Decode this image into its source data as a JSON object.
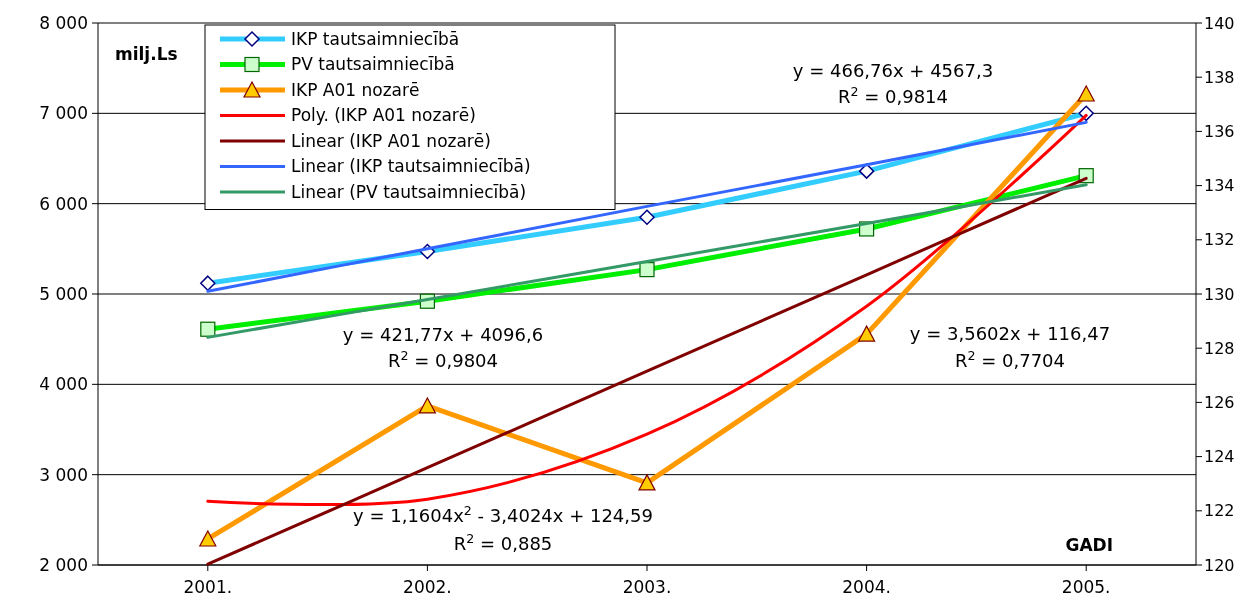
{
  "chart_data": {
    "type": "line",
    "xlabel": "GADI",
    "ylabel": "milj.Ls",
    "categories": [
      "2001.",
      "2002.",
      "2003.",
      "2004.",
      "2005."
    ],
    "ylim": [
      2000,
      8000
    ],
    "yticks": [
      {
        "value": 2000,
        "label": "2 000"
      },
      {
        "value": 3000,
        "label": "3 000"
      },
      {
        "value": 4000,
        "label": "4 000"
      },
      {
        "value": 5000,
        "label": "5 000"
      },
      {
        "value": 6000,
        "label": "6 000"
      },
      {
        "value": 7000,
        "label": "7 000"
      },
      {
        "value": 8000,
        "label": "8 000"
      }
    ],
    "y2lim": [
      120,
      140
    ],
    "y2ticks": [
      120,
      122,
      124,
      126,
      128,
      130,
      132,
      134,
      136,
      138,
      140
    ],
    "grid": "y",
    "legend": "top left",
    "line_style": "solid",
    "series": [
      {
        "name": "IKP tautsaimniecībā",
        "color": "#33ccff",
        "marker": "diamond",
        "values": [
          5120,
          5470,
          5850,
          6360,
          7000
        ]
      },
      {
        "name": "PV tautsaimniecībā",
        "color": "#00ee00",
        "marker": "square",
        "values": [
          4610,
          4920,
          5270,
          5720,
          6310
        ]
      },
      {
        "name": "IKP A01 nozarē",
        "color": "#ff9900",
        "marker": "triangle",
        "axis": "y2",
        "values": [
          120.96,
          125.87,
          123.03,
          128.52,
          137.38
        ]
      },
      {
        "name": "Poly. (IKP A01 nozarē)",
        "color": "#ff0000",
        "marker": "none",
        "axis": "y2",
        "values": [
          122.35,
          122.43,
          124.83,
          129.55,
          136.59
        ]
      },
      {
        "name": "Linear (IKP A01 nozarē)",
        "color": "#800000",
        "marker": "none",
        "axis": "y2",
        "values": [
          120.03,
          123.59,
          127.15,
          130.71,
          134.27
        ]
      },
      {
        "name": "Linear (IKP tautsaimniecībā)",
        "color": "#3366ff",
        "marker": "none",
        "values": [
          5030,
          5500,
          5970,
          6430,
          6900
        ]
      },
      {
        "name": "Linear (PV tautsaimniecībā)",
        "color": "#339966",
        "marker": "none",
        "values": [
          4520,
          4940,
          5360,
          5780,
          6210
        ]
      }
    ],
    "annotations": [
      "y = 466,76x + 4567,3",
      "R$^{2}$ = 0,9814",
      "y = 421,77x + 4096,6",
      "R$^{2}$ = 0,9804",
      "y = 3,5602x + 116,47",
      "R$^{2}$ = 0,7704",
      "y = 1,1604x$^{2}$ - 3,4024x + 124,59",
      "R$^{2}$ = 0,885"
    ]
  }
}
